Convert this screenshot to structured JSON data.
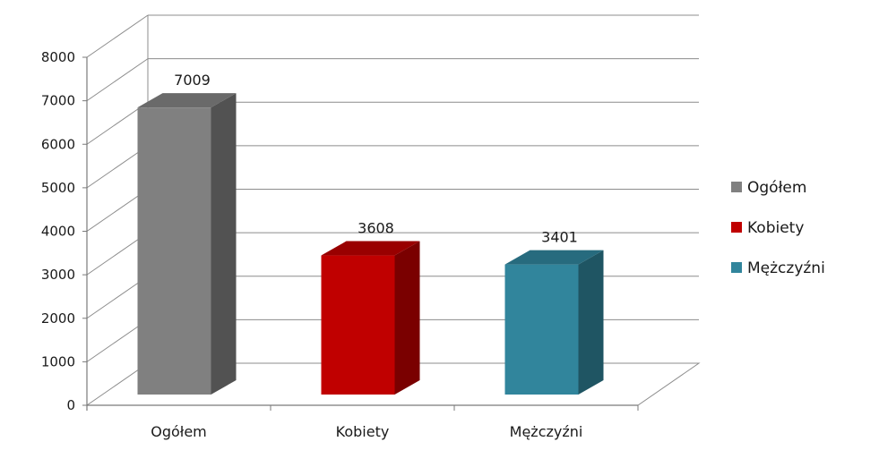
{
  "chart_data": {
    "type": "bar",
    "style": "3d-column",
    "title": "",
    "xlabel": "",
    "ylabel": "",
    "categories": [
      "Ogółem",
      "Kobiety",
      "Mężczyźni"
    ],
    "values": [
      7009,
      3608,
      3401
    ],
    "data_labels": [
      "7009",
      "3608",
      "3401"
    ],
    "colors": [
      "#808080",
      "#c00000",
      "#31859c"
    ],
    "side_colors": [
      "#525252",
      "#7a0000",
      "#1f5563"
    ],
    "top_colors": [
      "#6a6a6a",
      "#990000",
      "#276b7e"
    ],
    "ylim": [
      0,
      8000
    ],
    "yticks": [
      0,
      1000,
      2000,
      3000,
      4000,
      5000,
      6000,
      7000,
      8000
    ],
    "ytick_labels": [
      "0",
      "1000",
      "2000",
      "3000",
      "4000",
      "5000",
      "6000",
      "7000",
      "8000"
    ],
    "grid": true,
    "legend": {
      "position": "right",
      "entries": [
        "Ogółem",
        "Kobiety",
        "Mężczyźni"
      ]
    }
  }
}
